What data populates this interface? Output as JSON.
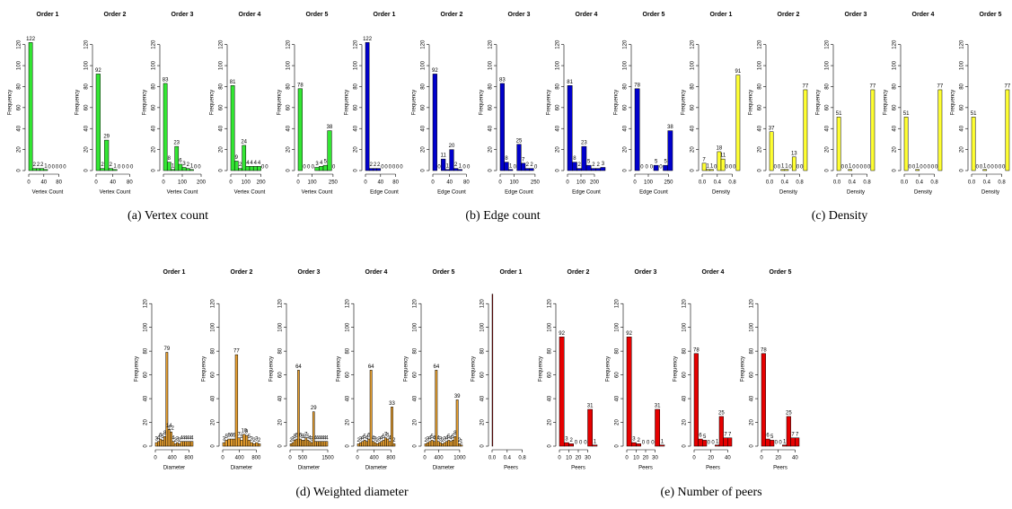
{
  "chart_data": [
    {
      "type": "histogram",
      "title": "Order 1",
      "xlabel": "Vertex Count",
      "ylabel": "Frequency",
      "bins": [
        0,
        10,
        20,
        30,
        40,
        50,
        60,
        70,
        80,
        90,
        100
      ],
      "values": [
        122,
        2,
        2,
        2,
        1,
        0,
        0,
        0,
        0,
        0
      ],
      "color": "#33e633",
      "xlim": [
        0,
        100
      ],
      "xticks": [
        0,
        40,
        80
      ],
      "ylim": [
        0,
        130
      ],
      "yticks": [
        0,
        20,
        40,
        60,
        80,
        100,
        120
      ],
      "show_values": true
    },
    {
      "type": "histogram",
      "title": "Order 2",
      "xlabel": "Vertex Count",
      "ylabel": "Frequency",
      "bins": [
        0,
        10,
        20,
        30,
        40,
        50,
        60,
        70,
        80,
        90
      ],
      "values": [
        92,
        2,
        29,
        2,
        1,
        0,
        0,
        0,
        0
      ],
      "color": "#33e633",
      "xlim": [
        0,
        90
      ],
      "xticks": [
        0,
        40,
        80
      ],
      "ylim": [
        0,
        130
      ],
      "yticks": [
        0,
        20,
        40,
        60,
        80,
        100,
        120
      ],
      "show_values": true
    },
    {
      "type": "histogram",
      "title": "Order 3",
      "xlabel": "Vertex Count",
      "ylabel": "Frequency",
      "bins": [
        0,
        20,
        40,
        60,
        80,
        100,
        120,
        140,
        160,
        180,
        200
      ],
      "values": [
        83,
        8,
        1,
        23,
        6,
        3,
        2,
        1,
        0,
        0
      ],
      "color": "#33e633",
      "xlim": [
        0,
        200
      ],
      "xticks": [
        0,
        100,
        200
      ],
      "ylim": [
        0,
        130
      ],
      "yticks": [
        0,
        20,
        40,
        60,
        80,
        100,
        120
      ],
      "show_values": true
    },
    {
      "type": "histogram",
      "title": "Order 4",
      "xlabel": "Vertex Count",
      "ylabel": "Frequency",
      "bins": [
        0,
        25,
        50,
        75,
        100,
        125,
        150,
        175,
        200,
        225,
        250
      ],
      "values": [
        81,
        9,
        2,
        24,
        4,
        4,
        4,
        4,
        0,
        0
      ],
      "color": "#33e633",
      "xlim": [
        0,
        250
      ],
      "xticks": [
        0,
        100,
        200
      ],
      "ylim": [
        0,
        130
      ],
      "yticks": [
        0,
        20,
        40,
        60,
        80,
        100,
        120
      ],
      "show_values": true
    },
    {
      "type": "histogram",
      "title": "Order 5",
      "xlabel": "Vertex Count",
      "ylabel": "Frequency",
      "bins": [
        0,
        30,
        60,
        90,
        120,
        150,
        180,
        210,
        240,
        270
      ],
      "values": [
        78,
        0,
        0,
        0,
        3,
        4,
        5,
        38,
        0
      ],
      "color": "#33e633",
      "xlim": [
        0,
        270
      ],
      "xticks": [
        0,
        100,
        250
      ],
      "ylim": [
        0,
        130
      ],
      "yticks": [
        0,
        20,
        40,
        60,
        80,
        100,
        120
      ],
      "show_values": true
    },
    {
      "type": "histogram",
      "title": "Order 1",
      "xlabel": "Edge Count",
      "ylabel": "Frequency",
      "bins": [
        0,
        10,
        20,
        30,
        40,
        50,
        60,
        70,
        80,
        90,
        100
      ],
      "values": [
        122,
        2,
        2,
        2,
        0,
        0,
        0,
        0,
        0,
        0
      ],
      "color": "#0000cc",
      "xlim": [
        0,
        100
      ],
      "xticks": [
        0,
        40,
        80
      ],
      "ylim": [
        0,
        130
      ],
      "yticks": [
        0,
        20,
        40,
        60,
        80,
        100,
        120
      ],
      "show_values": true
    },
    {
      "type": "histogram",
      "title": "Order 2",
      "xlabel": "Edge Count",
      "ylabel": "Frequency",
      "bins": [
        0,
        10,
        20,
        30,
        40,
        50,
        60,
        70,
        80,
        90
      ],
      "values": [
        92,
        0,
        11,
        1,
        20,
        2,
        1,
        0,
        0
      ],
      "color": "#0000cc",
      "xlim": [
        0,
        90
      ],
      "xticks": [
        0,
        40,
        80
      ],
      "ylim": [
        0,
        130
      ],
      "yticks": [
        0,
        20,
        40,
        60,
        80,
        100,
        120
      ],
      "show_values": true
    },
    {
      "type": "histogram",
      "title": "Order 3",
      "xlabel": "Edge Count",
      "ylabel": "Frequency",
      "bins": [
        0,
        30,
        60,
        90,
        120,
        150,
        180,
        210,
        240,
        270
      ],
      "values": [
        83,
        8,
        1,
        0,
        25,
        7,
        2,
        2,
        0
      ],
      "color": "#0000cc",
      "xlim": [
        0,
        270
      ],
      "xticks": [
        0,
        100,
        250
      ],
      "ylim": [
        0,
        130
      ],
      "yticks": [
        0,
        20,
        40,
        60,
        80,
        100,
        120
      ],
      "show_values": true
    },
    {
      "type": "histogram",
      "title": "Order 4",
      "xlabel": "Edge Count",
      "ylabel": "Frequency",
      "bins": [
        0,
        35,
        70,
        105,
        140,
        175,
        210,
        245,
        280
      ],
      "values": [
        81,
        8,
        2,
        23,
        5,
        2,
        2,
        3
      ],
      "color": "#0000cc",
      "xlim": [
        0,
        280
      ],
      "xticks": [
        0,
        100,
        200
      ],
      "ylim": [
        0,
        130
      ],
      "yticks": [
        0,
        20,
        40,
        60,
        80,
        100,
        120
      ],
      "show_values": true
    },
    {
      "type": "histogram",
      "title": "Order 5",
      "xlabel": "Edge Count",
      "ylabel": "Frequency",
      "bins": [
        0,
        35,
        70,
        105,
        140,
        175,
        210,
        245,
        280
      ],
      "values": [
        78,
        0,
        0,
        0,
        5,
        0,
        5,
        38
      ],
      "color": "#0000cc",
      "xlim": [
        0,
        280
      ],
      "xticks": [
        0,
        100,
        250
      ],
      "ylim": [
        0,
        130
      ],
      "yticks": [
        0,
        20,
        40,
        60,
        80,
        100,
        120
      ],
      "show_values": true
    },
    {
      "type": "histogram",
      "title": "Order 1",
      "xlabel": "Density",
      "ylabel": "Frequency",
      "bins": [
        0,
        0.1,
        0.2,
        0.3,
        0.4,
        0.5,
        0.6,
        0.7,
        0.8,
        0.9,
        1
      ],
      "values": [
        7,
        1,
        1,
        0,
        18,
        11,
        0,
        0,
        0,
        91
      ],
      "color": "#ffff33",
      "xlim": [
        0,
        1
      ],
      "xticks": [
        {
          "value": 0,
          "label": "0.0"
        },
        0.4,
        0.8
      ],
      "ylim": [
        0,
        130
      ],
      "yticks": [
        0,
        20,
        40,
        60,
        80,
        100,
        120
      ],
      "show_values": true
    },
    {
      "type": "histogram",
      "title": "Order 2",
      "xlabel": "Density",
      "ylabel": "Frequency",
      "bins": [
        0,
        0.1,
        0.2,
        0.3,
        0.4,
        0.5,
        0.6,
        0.7,
        0.8,
        0.9,
        1
      ],
      "values": [
        37,
        0,
        0,
        1,
        1,
        0,
        13,
        0,
        0,
        77
      ],
      "color": "#ffff33",
      "xlim": [
        0,
        1
      ],
      "xticks": [
        {
          "value": 0,
          "label": "0.0"
        },
        0.4,
        0.8
      ],
      "ylim": [
        0,
        130
      ],
      "yticks": [
        0,
        20,
        40,
        60,
        80,
        100,
        120
      ],
      "show_values": true
    },
    {
      "type": "histogram",
      "title": "Order 3",
      "xlabel": "Density",
      "ylabel": "Frequency",
      "bins": [
        0,
        0.1,
        0.2,
        0.3,
        0.4,
        0.5,
        0.6,
        0.7,
        0.8,
        0.9,
        1
      ],
      "values": [
        51,
        0,
        0,
        1,
        0,
        0,
        0,
        0,
        0,
        77
      ],
      "color": "#ffff33",
      "xlim": [
        0,
        1
      ],
      "xticks": [
        {
          "value": 0,
          "label": "0.0"
        },
        0.4,
        0.8
      ],
      "ylim": [
        0,
        130
      ],
      "yticks": [
        0,
        20,
        40,
        60,
        80,
        100,
        120
      ],
      "show_values": true
    },
    {
      "type": "histogram",
      "title": "Order 4",
      "xlabel": "Density",
      "ylabel": "Frequency",
      "bins": [
        0,
        0.1,
        0.2,
        0.3,
        0.4,
        0.5,
        0.6,
        0.7,
        0.8,
        0.9,
        1
      ],
      "values": [
        51,
        0,
        0,
        1,
        0,
        0,
        0,
        0,
        0,
        77
      ],
      "color": "#ffff33",
      "xlim": [
        0,
        1
      ],
      "xticks": [
        {
          "value": 0,
          "label": "0.0"
        },
        0.4,
        0.8
      ],
      "ylim": [
        0,
        130
      ],
      "yticks": [
        0,
        20,
        40,
        60,
        80,
        100,
        120
      ],
      "show_values": true
    },
    {
      "type": "histogram",
      "title": "Order 5",
      "xlabel": "Density",
      "ylabel": "Frequency",
      "bins": [
        0,
        0.1,
        0.2,
        0.3,
        0.4,
        0.5,
        0.6,
        0.7,
        0.8,
        0.9,
        1
      ],
      "values": [
        51,
        0,
        0,
        1,
        0,
        0,
        0,
        0,
        0,
        77
      ],
      "color": "#ffff33",
      "xlim": [
        0,
        1
      ],
      "xticks": [
        {
          "value": 0,
          "label": "0.0"
        },
        0.4,
        0.8
      ],
      "ylim": [
        0,
        130
      ],
      "yticks": [
        0,
        20,
        40,
        60,
        80,
        100,
        120
      ],
      "show_values": true
    },
    {
      "type": "histogram",
      "title": "Order 1",
      "xlabel": "Diameter",
      "ylabel": "Frequency",
      "bins": [
        0,
        50,
        100,
        150,
        200,
        250,
        300,
        350,
        400,
        450,
        500,
        550,
        600,
        650,
        700,
        750,
        800,
        850,
        900
      ],
      "values": [
        3,
        4,
        6,
        5,
        8,
        79,
        14,
        12,
        4,
        2,
        3,
        2,
        4,
        4,
        4,
        4,
        4,
        4
      ],
      "color": "#e8a030",
      "xlim": [
        0,
        900
      ],
      "xticks": [
        0,
        400,
        800
      ],
      "ylim": [
        0,
        130
      ],
      "yticks": [
        0,
        20,
        40,
        60,
        80,
        100,
        120
      ],
      "show_values": true
    },
    {
      "type": "histogram",
      "title": "Order 2",
      "xlabel": "Diameter",
      "ylabel": "Frequency",
      "bins": [
        0,
        60,
        120,
        180,
        240,
        300,
        360,
        420,
        480,
        540,
        600,
        660,
        720,
        780,
        840,
        900
      ],
      "values": [
        3,
        5,
        6,
        6,
        6,
        77,
        7,
        5,
        10,
        9,
        5,
        3,
        2,
        3,
        2
      ],
      "color": "#e8a030",
      "xlim": [
        0,
        900
      ],
      "xticks": [
        0,
        400,
        800
      ],
      "ylim": [
        0,
        130
      ],
      "yticks": [
        0,
        20,
        40,
        60,
        80,
        100,
        120
      ],
      "show_values": true
    },
    {
      "type": "histogram",
      "title": "Order 3",
      "xlabel": "Diameter",
      "ylabel": "Frequency",
      "bins": [
        0,
        75,
        150,
        225,
        300,
        375,
        450,
        525,
        600,
        675,
        750,
        825,
        900,
        975,
        1050,
        1125,
        1200,
        1275,
        1350,
        1425,
        1500
      ],
      "values": [
        2,
        3,
        5,
        6,
        64,
        6,
        5,
        5,
        7,
        5,
        4,
        3,
        29,
        4,
        4,
        4,
        4,
        4,
        4,
        4
      ],
      "color": "#e8a030",
      "xlim": [
        0,
        1500
      ],
      "xticks": [
        0,
        500,
        1500
      ],
      "ylim": [
        0,
        130
      ],
      "yticks": [
        0,
        20,
        40,
        60,
        80,
        100,
        120
      ],
      "show_values": true
    },
    {
      "type": "histogram",
      "title": "Order 4",
      "xlabel": "Diameter",
      "ylabel": "Frequency",
      "bins": [
        0,
        50,
        100,
        150,
        200,
        250,
        300,
        350,
        400,
        450,
        500,
        550,
        600,
        650,
        700,
        750,
        800,
        850,
        900
      ],
      "values": [
        2,
        3,
        4,
        5,
        4,
        6,
        64,
        4,
        3,
        2,
        3,
        4,
        5,
        7,
        6,
        4,
        33,
        2
      ],
      "color": "#e8a030",
      "xlim": [
        0,
        900
      ],
      "xticks": [
        0,
        400,
        800
      ],
      "ylim": [
        0,
        130
      ],
      "yticks": [
        0,
        20,
        40,
        60,
        80,
        100,
        120
      ],
      "show_values": true
    },
    {
      "type": "histogram",
      "title": "Order 5",
      "xlabel": "Diameter",
      "ylabel": "Frequency",
      "bins": [
        0,
        60,
        120,
        180,
        240,
        300,
        360,
        420,
        480,
        540,
        600,
        660,
        720,
        780,
        840,
        900,
        960,
        1020,
        1080
      ],
      "values": [
        2,
        3,
        4,
        5,
        4,
        64,
        4,
        3,
        2,
        3,
        4,
        5,
        4,
        5,
        8,
        39,
        2,
        1
      ],
      "color": "#e8a030",
      "xlim": [
        0,
        1080
      ],
      "xticks": [
        0,
        400,
        1000
      ],
      "ylim": [
        0,
        130
      ],
      "yticks": [
        0,
        20,
        40,
        60,
        80,
        100,
        120
      ],
      "show_values": true
    },
    {
      "type": "histogram",
      "title": "Order 1",
      "xlabel": "Peers",
      "ylabel": "Frequency",
      "bins": [
        0,
        0.02
      ],
      "values": [
        128
      ],
      "color": "#e60000",
      "xlim": [
        0,
        1
      ],
      "xticks": [
        {
          "value": 0,
          "label": "0.0"
        },
        0.4,
        0.8
      ],
      "ylim": [
        0,
        130
      ],
      "yticks": [
        0,
        20,
        40,
        60,
        80,
        100,
        120
      ],
      "show_values": false
    },
    {
      "type": "histogram",
      "title": "Order 2",
      "xlabel": "Peers",
      "ylabel": "Frequency",
      "bins": [
        0,
        5,
        10,
        15,
        20,
        25,
        30,
        35,
        40
      ],
      "values": [
        92,
        3,
        2,
        0,
        0,
        0,
        31,
        1
      ],
      "color": "#e60000",
      "xlim": [
        0,
        40
      ],
      "xticks": [
        0,
        10,
        20,
        30
      ],
      "ylim": [
        0,
        130
      ],
      "yticks": [
        0,
        20,
        40,
        60,
        80,
        100,
        120
      ],
      "show_values": true
    },
    {
      "type": "histogram",
      "title": "Order 3",
      "xlabel": "Peers",
      "ylabel": "Frequency",
      "bins": [
        0,
        5,
        10,
        15,
        20,
        25,
        30,
        35,
        40
      ],
      "values": [
        92,
        3,
        2,
        0,
        0,
        0,
        31,
        1
      ],
      "color": "#e60000",
      "xlim": [
        0,
        40
      ],
      "xticks": [
        0,
        10,
        20,
        30
      ],
      "ylim": [
        0,
        130
      ],
      "yticks": [
        0,
        20,
        40,
        60,
        80,
        100,
        120
      ],
      "show_values": true
    },
    {
      "type": "histogram",
      "title": "Order 4",
      "xlabel": "Peers",
      "ylabel": "Frequency",
      "bins": [
        0,
        5,
        10,
        15,
        20,
        25,
        30,
        35,
        40,
        45
      ],
      "values": [
        78,
        6,
        5,
        0,
        0,
        1,
        25,
        7,
        7
      ],
      "color": "#e60000",
      "xlim": [
        0,
        45
      ],
      "xticks": [
        0,
        20,
        40
      ],
      "ylim": [
        0,
        130
      ],
      "yticks": [
        0,
        20,
        40,
        60,
        80,
        100,
        120
      ],
      "show_values": true
    },
    {
      "type": "histogram",
      "title": "Order 5",
      "xlabel": "Peers",
      "ylabel": "Frequency",
      "bins": [
        0,
        5,
        10,
        15,
        20,
        25,
        30,
        35,
        40,
        45
      ],
      "values": [
        78,
        6,
        5,
        0,
        0,
        1,
        25,
        7,
        7
      ],
      "color": "#e60000",
      "xlim": [
        0,
        45
      ],
      "xticks": [
        0,
        20,
        40
      ],
      "ylim": [
        0,
        130
      ],
      "yticks": [
        0,
        20,
        40,
        60,
        80,
        100,
        120
      ],
      "show_values": true
    }
  ],
  "captions": [
    "(a) Vertex count",
    "(b) Edge count",
    "(c) Density",
    "(d) Weighted diameter",
    "(e) Number of peers"
  ]
}
